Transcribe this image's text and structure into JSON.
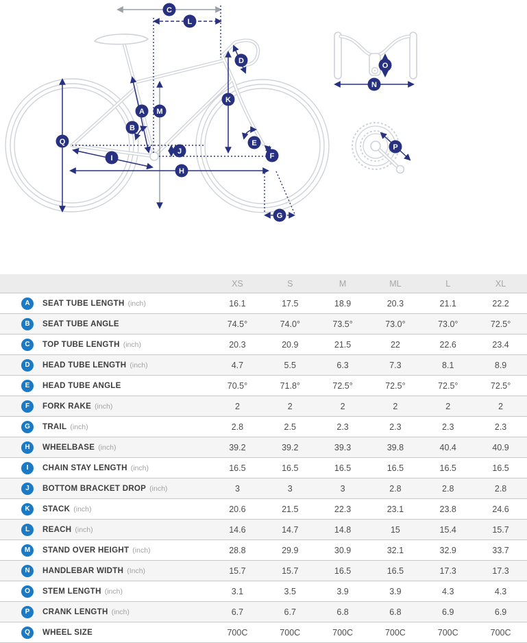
{
  "diagram": {
    "markers": {
      "a": "A",
      "b": "B",
      "c": "C",
      "d": "D",
      "e": "E",
      "f": "F",
      "g": "G",
      "h": "H",
      "i": "I",
      "j": "J",
      "k": "K",
      "l": "L",
      "m": "M",
      "n": "N",
      "o": "O",
      "p": "P",
      "q": "Q"
    },
    "colors": {
      "marker_badge": "#283180",
      "arrow": "#283180",
      "bike_outline": "#cfd3d8",
      "reference_gray": "#9aa0a8"
    }
  },
  "table": {
    "columns": [
      "XS",
      "S",
      "M",
      "ML",
      "L",
      "XL"
    ],
    "marker_color": "#1b7ac5",
    "rows": [
      {
        "key": "A",
        "label": "SEAT TUBE LENGTH",
        "unit": "(inch)",
        "values": [
          "16.1",
          "17.5",
          "18.9",
          "20.3",
          "21.1",
          "22.2"
        ]
      },
      {
        "key": "B",
        "label": "SEAT TUBE ANGLE",
        "unit": "",
        "values": [
          "74.5°",
          "74.0°",
          "73.5°",
          "73.0°",
          "73.0°",
          "72.5°"
        ]
      },
      {
        "key": "C",
        "label": "TOP TUBE LENGTH",
        "unit": "(inch)",
        "values": [
          "20.3",
          "20.9",
          "21.5",
          "22",
          "22.6",
          "23.4"
        ]
      },
      {
        "key": "D",
        "label": "HEAD TUBE LENGTH",
        "unit": "(inch)",
        "values": [
          "4.7",
          "5.5",
          "6.3",
          "7.3",
          "8.1",
          "8.9"
        ]
      },
      {
        "key": "E",
        "label": "HEAD TUBE ANGLE",
        "unit": "",
        "values": [
          "70.5°",
          "71.8°",
          "72.5°",
          "72.5°",
          "72.5°",
          "72.5°"
        ]
      },
      {
        "key": "F",
        "label": "FORK RAKE",
        "unit": "(inch)",
        "values": [
          "2",
          "2",
          "2",
          "2",
          "2",
          "2"
        ]
      },
      {
        "key": "G",
        "label": "TRAIL",
        "unit": "(inch)",
        "values": [
          "2.8",
          "2.5",
          "2.3",
          "2.3",
          "2.3",
          "2.3"
        ]
      },
      {
        "key": "H",
        "label": "WHEELBASE",
        "unit": "(inch)",
        "values": [
          "39.2",
          "39.2",
          "39.3",
          "39.8",
          "40.4",
          "40.9"
        ]
      },
      {
        "key": "I",
        "label": "CHAIN STAY LENGTH",
        "unit": "(inch)",
        "values": [
          "16.5",
          "16.5",
          "16.5",
          "16.5",
          "16.5",
          "16.5"
        ]
      },
      {
        "key": "J",
        "label": "BOTTOM BRACKET DROP",
        "unit": "(inch)",
        "values": [
          "3",
          "3",
          "3",
          "2.8",
          "2.8",
          "2.8"
        ]
      },
      {
        "key": "K",
        "label": "STACK",
        "unit": "(inch)",
        "values": [
          "20.6",
          "21.5",
          "22.3",
          "23.1",
          "23.8",
          "24.6"
        ]
      },
      {
        "key": "L",
        "label": "REACH",
        "unit": "(inch)",
        "values": [
          "14.6",
          "14.7",
          "14.8",
          "15",
          "15.4",
          "15.7"
        ]
      },
      {
        "key": "M",
        "label": "STAND OVER HEIGHT",
        "unit": "(inch)",
        "values": [
          "28.8",
          "29.9",
          "30.9",
          "32.1",
          "32.9",
          "33.7"
        ]
      },
      {
        "key": "N",
        "label": "HANDLEBAR WIDTH",
        "unit": "(Inch)",
        "values": [
          "15.7",
          "15.7",
          "16.5",
          "16.5",
          "17.3",
          "17.3"
        ]
      },
      {
        "key": "O",
        "label": "STEM LENGTH",
        "unit": "(inch)",
        "values": [
          "3.1",
          "3.5",
          "3.9",
          "3.9",
          "4.3",
          "4.3"
        ]
      },
      {
        "key": "P",
        "label": "CRANK LENGTH",
        "unit": "(inch)",
        "values": [
          "6.7",
          "6.7",
          "6.8",
          "6.8",
          "6.9",
          "6.9"
        ]
      },
      {
        "key": "Q",
        "label": "WHEEL SIZE",
        "unit": "",
        "values": [
          "700C",
          "700C",
          "700C",
          "700C",
          "700C",
          "700C"
        ]
      }
    ]
  }
}
